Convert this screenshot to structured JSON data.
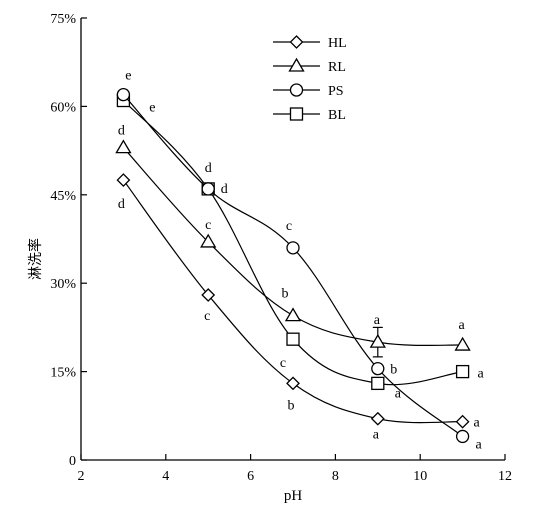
{
  "chart_data": {
    "type": "line",
    "xlabel": "pH",
    "ylabel": "淋洗率",
    "xlim": [
      2,
      12
    ],
    "ylim": [
      0,
      75
    ],
    "xticks": [
      2,
      4,
      6,
      8,
      10,
      12
    ],
    "yticks": [
      0,
      15,
      30,
      45,
      60,
      75
    ],
    "ytick_labels": [
      "0",
      "15%",
      "30%",
      "45%",
      "60%",
      "75%"
    ],
    "x": [
      3,
      5,
      7,
      9,
      11
    ],
    "legend_position": "top-center",
    "grid": false,
    "series": [
      {
        "name": "HL",
        "marker": "diamond",
        "values": [
          47.5,
          28,
          13,
          7,
          6.5
        ],
        "labels": [
          "d",
          "c",
          "b",
          "a",
          "a"
        ]
      },
      {
        "name": "RL",
        "marker": "triangle",
        "values": [
          53,
          37,
          24.5,
          20,
          19.5
        ],
        "labels": [
          "d",
          "c",
          "b",
          "a",
          "a"
        ],
        "error_bar_index": 3,
        "error": 2.5
      },
      {
        "name": "PS",
        "marker": "circle",
        "values": [
          62,
          46,
          36,
          15.5,
          4
        ],
        "labels": [
          "e",
          "d",
          "c",
          "b",
          "a"
        ]
      },
      {
        "name": "BL",
        "marker": "square",
        "values": [
          61,
          46,
          20.5,
          13,
          15
        ],
        "labels": [
          "e",
          "d",
          "c",
          "a",
          "a"
        ]
      }
    ]
  }
}
